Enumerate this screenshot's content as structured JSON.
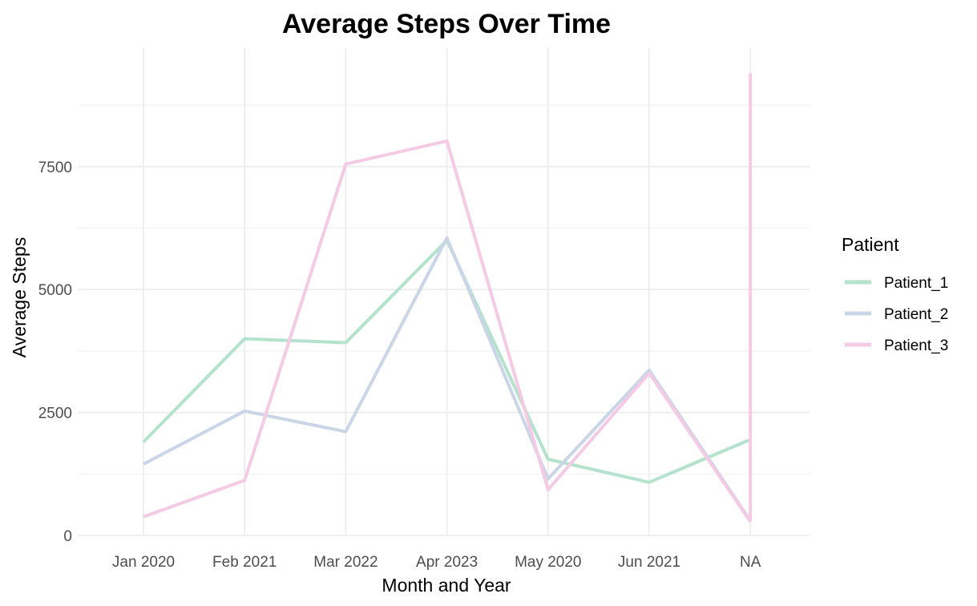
{
  "chart_data": {
    "type": "line",
    "title": "Average Steps Over Time",
    "xlabel": "Month and Year",
    "ylabel": "Average Steps",
    "categories": [
      "Jan 2020",
      "Feb 2021",
      "Mar 2022",
      "Apr 2023",
      "May 2020",
      "Jun 2021",
      "NA"
    ],
    "ylim": [
      0,
      9600
    ],
    "y_ticks": [
      0,
      2500,
      5000,
      7500
    ],
    "y_tick_labels": [
      "0",
      "2500",
      "5000",
      "7500"
    ],
    "grid": true,
    "legend": {
      "title": "Patient",
      "position": "right"
    },
    "series": [
      {
        "name": "Patient_1",
        "color": "#b3e2cd",
        "values": [
          1900,
          4000,
          3920,
          6000,
          1550,
          1080,
          1950
        ]
      },
      {
        "name": "Patient_2",
        "color": "#cbd5e8",
        "values": [
          1450,
          2530,
          2110,
          6050,
          1150,
          3360,
          300
        ]
      },
      {
        "name": "Patient_3",
        "color": "#f4cae4",
        "values": [
          380,
          1120,
          7550,
          8020,
          930,
          3300,
          280
        ],
        "na_vertical_segment": [
          280,
          9400
        ]
      }
    ]
  }
}
